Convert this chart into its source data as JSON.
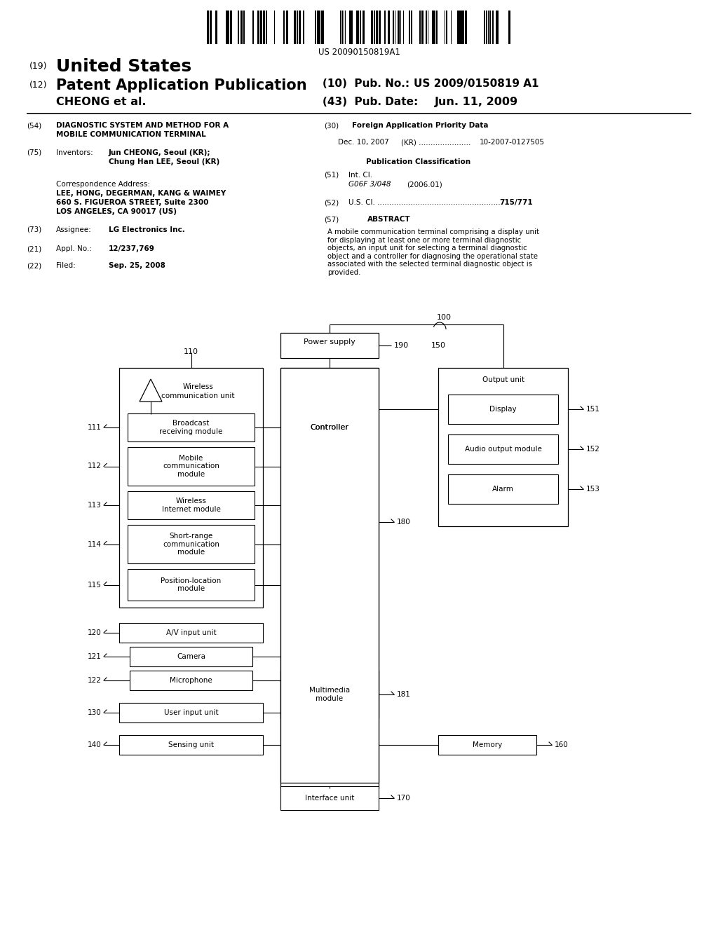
{
  "bg_color": "#ffffff",
  "patent_number": "US 20090150819A1",
  "barcode_seed": 42,
  "header": {
    "number_label": "(19)",
    "country": "United States",
    "type_label": "(12)",
    "type": "Patent Application Publication",
    "pub_label": "(10)  Pub. No.:",
    "pub_number": "US 2009/0150819 A1",
    "date_label": "(43)  Pub. Date:",
    "pub_date": "Jun. 11, 2009",
    "applicant": "CHEONG et al."
  },
  "body": {
    "title_label": "(54)",
    "title_line1": "DIAGNOSTIC SYSTEM AND METHOD FOR A",
    "title_line2": "MOBILE COMMUNICATION TERMINAL",
    "inventors_label": "(75)",
    "inventors_key": "Inventors:",
    "inventor1": "Jun CHEONG, Seoul (KR);",
    "inventor2": "Chung Han LEE, Seoul (KR)",
    "corr_key": "Correspondence Address:",
    "corr_line1": "LEE, HONG, DEGERMAN, KANG & WAIMEY",
    "corr_line2": "660 S. FIGUEROA STREET, Suite 2300",
    "corr_line3": "LOS ANGELES, CA 90017 (US)",
    "assignee_label": "(73)",
    "assignee_key": "Assignee:",
    "assignee_val": "LG Electronics Inc.",
    "appl_label": "(21)",
    "appl_key": "Appl. No.:",
    "appl_val": "12/237,769",
    "filed_label": "(22)",
    "filed_key": "Filed:",
    "filed_val": "Sep. 25, 2008",
    "foreign_label": "(30)",
    "foreign_title": "Foreign Application Priority Data",
    "foreign_date": "Dec. 10, 2007",
    "foreign_country": "(KR) ......................",
    "foreign_num": "10-2007-0127505",
    "pub_class_title": "Publication Classification",
    "intcl_label": "(51)",
    "intcl_key": "Int. Cl.",
    "intcl_val": "G06F 3/048",
    "intcl_year": "(2006.01)",
    "uscl_label": "(52)",
    "uscl_key": "U.S. Cl. .....................................................",
    "uscl_val": "715/771",
    "abstract_label": "(57)",
    "abstract_title": "ABSTRACT",
    "abstract_text": "A mobile communication terminal comprising a display unit\nfor displaying at least one or more terminal diagnostic\nobjects, an input unit for selecting a terminal diagnostic\nobject and a controller for diagnosing the operational state\nassociated with the selected terminal diagnostic object is\nprovided."
  },
  "diagram": {
    "label_100": "100",
    "power_supply": "Power supply",
    "label_190": "190",
    "label_150": "150",
    "controller_label": "Controller",
    "wireless_outer_label": "110",
    "wireless_text1": "Wireless",
    "wireless_text2": "communication unit",
    "sub_modules": [
      {
        "label": "Broadcast\nreceiving module",
        "num": "111"
      },
      {
        "label": "Mobile\ncommunication\nmodule",
        "num": "112"
      },
      {
        "label": "Wireless\nInternet module",
        "num": "113"
      },
      {
        "label": "Short-range\ncommunication\nmodule",
        "num": "114"
      },
      {
        "label": "Position-location\nmodule",
        "num": "115"
      }
    ],
    "av_input": "A/V input unit",
    "av_num": "120",
    "camera": "Camera",
    "camera_num": "121",
    "microphone": "Microphone",
    "microphone_num": "122",
    "user_input": "User input unit",
    "user_input_num": "130",
    "sensing": "Sensing unit",
    "sensing_num": "140",
    "multimedia": "Multimedia\nmodule",
    "multimedia_num": "181",
    "memory": "Memory",
    "memory_num": "160",
    "interface": "Interface unit",
    "interface_num": "170",
    "label_180": "180",
    "output_unit": "Output unit",
    "display": "Display",
    "display_num": "151",
    "audio": "Audio output module",
    "audio_num": "152",
    "alarm": "Alarm",
    "alarm_num": "153"
  }
}
